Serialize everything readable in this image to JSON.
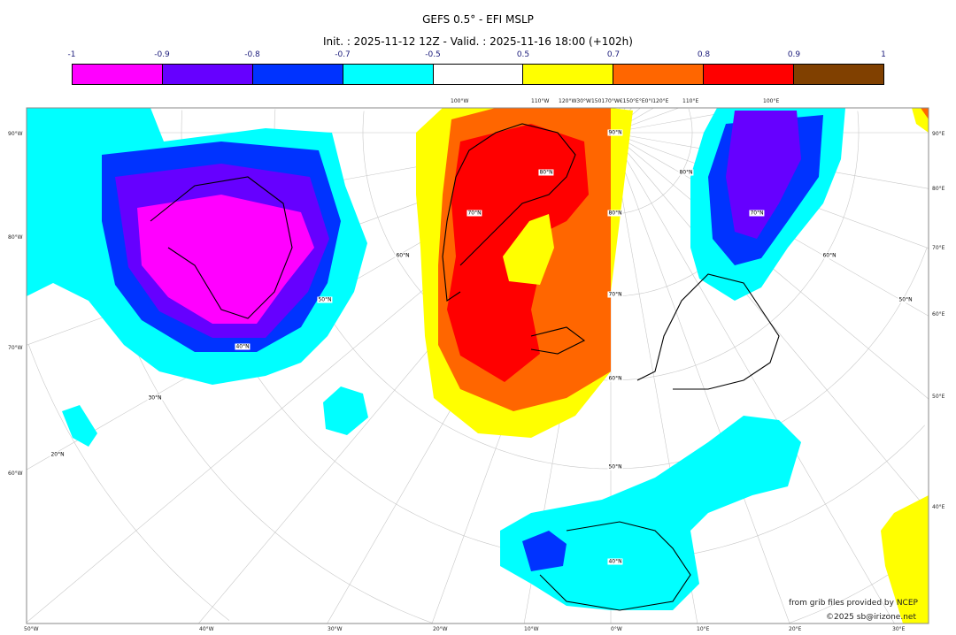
{
  "title": "GEFS 0.5° - EFI MSLP",
  "subtitle": "Init. : 2025-11-12 12Z - Valid. : 2025-11-16 18:00 (+102h)",
  "colorbar": {
    "ticks": [
      "-1",
      "-0.9",
      "-0.8",
      "-0.7",
      "-0.5",
      "0.5",
      "0.7",
      "0.8",
      "0.9",
      "1"
    ],
    "colors": [
      "#ff00ff",
      "#6600ff",
      "#0033ff",
      "#00ffff",
      "#ffffff",
      "#ffff00",
      "#ff6600",
      "#ff0000",
      "#804000"
    ]
  },
  "axes": {
    "bottom": [
      "50°W",
      "40°W",
      "30°W",
      "20°W",
      "10°W",
      "0°W",
      "10°E",
      "20°E",
      "30°E"
    ],
    "left": [
      "90°W",
      "80°W",
      "70°W",
      "60°W"
    ],
    "right": [
      "90°E",
      "80°E",
      "70°E",
      "60°E",
      "50°E",
      "40°E"
    ],
    "top": [
      "100°W",
      "110°W",
      "120°W30°W150170°W€150°E°E0°I120°E",
      "110°E",
      "100°E"
    ]
  },
  "grid_labels": [
    "90°N",
    "80°N",
    "70°N",
    "80°N",
    "70°N",
    "60°N",
    "50°N",
    "40°N",
    "60°N",
    "50°N",
    "40°N",
    "30°N",
    "20°N",
    "80°N",
    "70°N",
    "60°N",
    "50°N"
  ],
  "credits": {
    "line1": "from grib files provided by NCEP",
    "line2": "©2025 sb@irizone.net"
  }
}
